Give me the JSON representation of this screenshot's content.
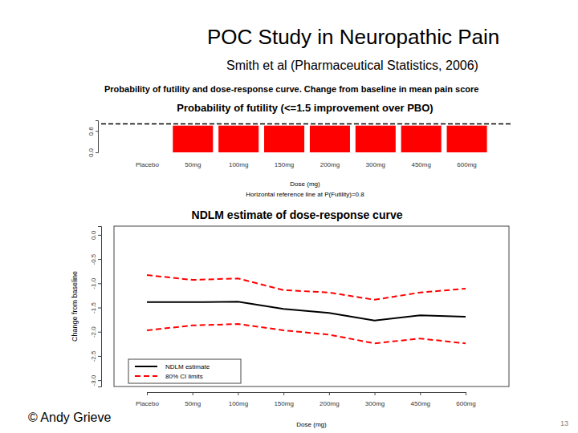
{
  "title": "POC Study in Neuropathic Pain",
  "subtitle": "Smith et al (Pharmaceutical Statistics, 2006)",
  "footer": "© Andy Grieve",
  "page_number": 13,
  "chart_data": [
    {
      "type": "bar",
      "title": "Probability of futility and dose-response curve.  Change from baseline in mean pain score",
      "subtitle": "Probability of futility (<=1.5 improvement over PBO)",
      "x_label": "Dose (mg)",
      "note": "Horizontal reference line at P(Futility)=0.8",
      "reference_line": 0.8,
      "categories": [
        "Placebo",
        "50mg",
        "100mg",
        "150mg",
        "200mg",
        "300mg",
        "450mg",
        "600mg"
      ],
      "values": [
        null,
        0.75,
        0.75,
        0.75,
        0.75,
        0.75,
        0.75,
        0.75
      ],
      "color": "#ff0000",
      "ylim": [
        0,
        0.9
      ],
      "yticks": [
        {
          "value": 0,
          "label": "0.0"
        },
        {
          "value": 0.6,
          "label": "0.6"
        }
      ]
    },
    {
      "type": "line",
      "title": "NDLM estimate of dose-response curve",
      "x_label": "Dose (mg)",
      "y_label": "Change from baseline",
      "categories": [
        "Placebo",
        "50mg",
        "100mg",
        "150mg",
        "200mg",
        "300mg",
        "450mg",
        "600mg"
      ],
      "series": [
        {
          "name": "NDLM estimate",
          "color": "#000000",
          "line_style": "solid",
          "values": [
            -1.39,
            -1.39,
            -1.38,
            -1.53,
            -1.61,
            -1.77,
            -1.66,
            -1.69
          ]
        },
        {
          "name": "80% CI limits",
          "color": "#ff0000",
          "line_style": "dashed",
          "values": [
            -0.83,
            -0.93,
            -0.9,
            -1.14,
            -1.19,
            -1.34,
            -1.19,
            -1.11
          ],
          "lower": [
            -1.97,
            -1.87,
            -1.84,
            -1.97,
            -2.06,
            -2.24,
            -2.14,
            -2.24
          ]
        }
      ],
      "ylim": [
        -3.13,
        0.18
      ],
      "yticks": [
        {
          "value": 0,
          "label": "0.0"
        },
        -0.5,
        {
          "value": -1,
          "label": "-1.0"
        },
        -1.5,
        {
          "value": -2,
          "label": "-2.0"
        },
        -2.5,
        {
          "value": -3,
          "label": "-3.0"
        }
      ],
      "legend": "bottom-left"
    }
  ]
}
